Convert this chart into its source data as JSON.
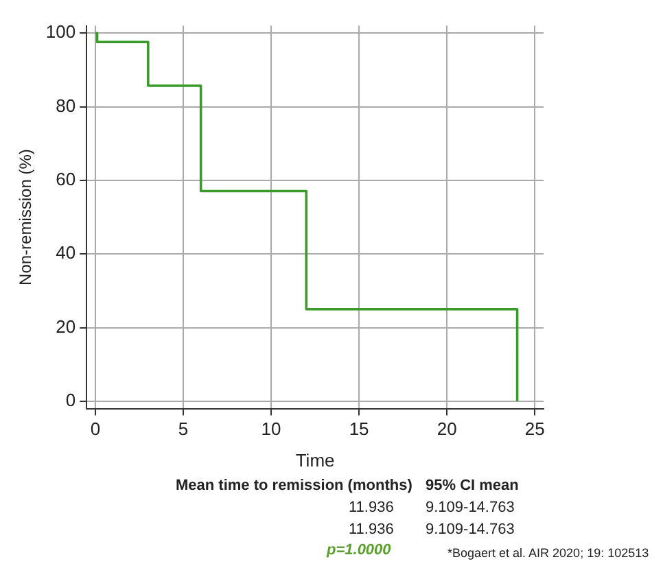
{
  "chart_data": {
    "type": "step",
    "xlabel": "Time",
    "ylabel": "Non-remission (%)",
    "x": [
      0,
      0.1,
      3,
      6,
      12,
      24
    ],
    "series": [
      {
        "color": "#3a9a2a",
        "values": [
          100,
          97.6,
          85.7,
          57.1,
          25,
          0
        ]
      }
    ],
    "xlim": [
      -0.5,
      25.5
    ],
    "xticks": [
      0,
      5,
      10,
      15,
      20,
      25
    ],
    "ylim": [
      -2,
      102
    ],
    "yticks": [
      0,
      20,
      40,
      60,
      80,
      100
    ],
    "grid": true,
    "legend": false,
    "marker": "none",
    "line_style": "solid",
    "annotations": [
      "Mean time to remission (months)",
      "95% CI mean",
      "11.936",
      "9.109-14.763",
      "11.936",
      "9.109-14.763",
      "p=1.0000",
      "*Bogaert et al. AIR 2020; 19: 102513"
    ]
  }
}
